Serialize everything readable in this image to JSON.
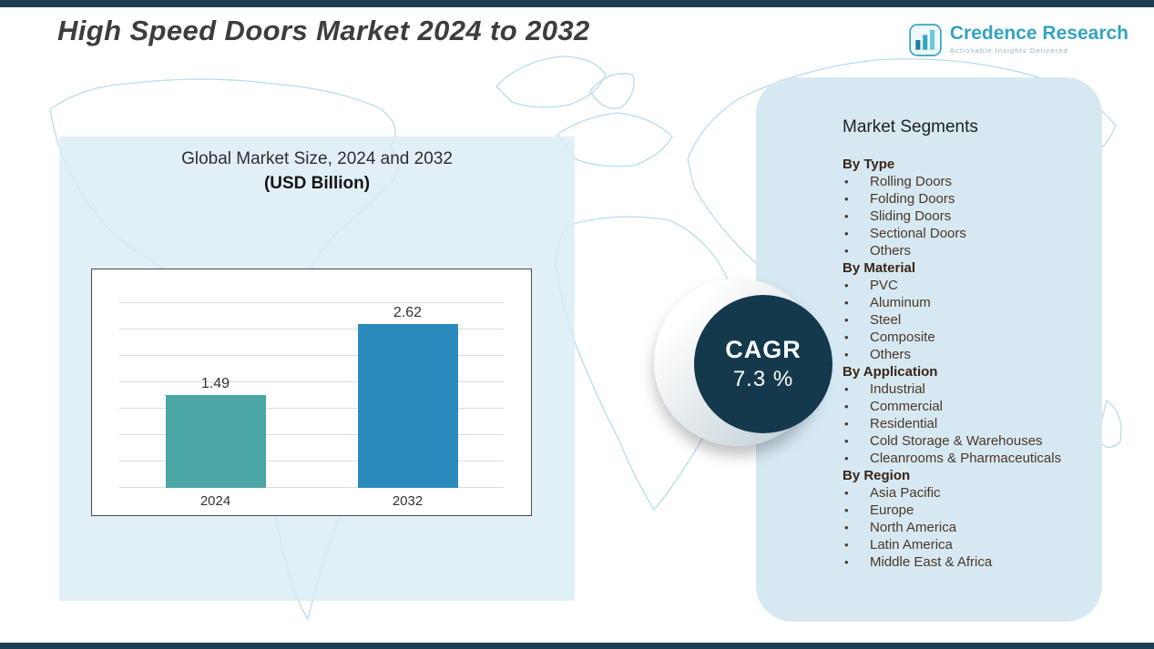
{
  "header": {
    "title": "High Speed Doors Market 2024 to 2032",
    "logo": {
      "name": "Credence Research",
      "tagline": "Actionable Insights Delivered"
    }
  },
  "chart_data": {
    "type": "bar",
    "title": "Global Market Size, 2024 and 2032",
    "subtitle": "(USD Billion)",
    "categories": [
      "2024",
      "2032"
    ],
    "values": [
      1.49,
      2.62
    ],
    "bar_colors": [
      "#4ba6a6",
      "#2c8bbd"
    ],
    "ylim": [
      0,
      3
    ],
    "grid": true,
    "legend": "none"
  },
  "cagr": {
    "label": "CAGR",
    "value": "7.3 %"
  },
  "segments": {
    "title": "Market Segments",
    "groups": [
      {
        "heading": "By Type",
        "items": [
          "Rolling Doors",
          "Folding Doors",
          "Sliding Doors",
          "Sectional Doors",
          "Others"
        ]
      },
      {
        "heading": "By Material",
        "items": [
          "PVC",
          "Aluminum",
          "Steel",
          "Composite",
          "Others"
        ]
      },
      {
        "heading": "By Application",
        "items": [
          "Industrial",
          "Commercial",
          "Residential",
          "Cold Storage & Warehouses",
          "Cleanrooms & Pharmaceuticals"
        ]
      },
      {
        "heading": "By Region",
        "items": [
          "Asia Pacific",
          "Europe",
          "North America",
          "Latin America",
          "Middle East & Africa"
        ]
      }
    ]
  },
  "colors": {
    "top_bottom_bars": "#1d3d50",
    "panel_blue": "#d6e9f2",
    "cagr_circle": "#14394d",
    "map_outline": "#b7dcea",
    "logo_teal": "#35a3c0",
    "title_text": "#3d3d3d"
  }
}
